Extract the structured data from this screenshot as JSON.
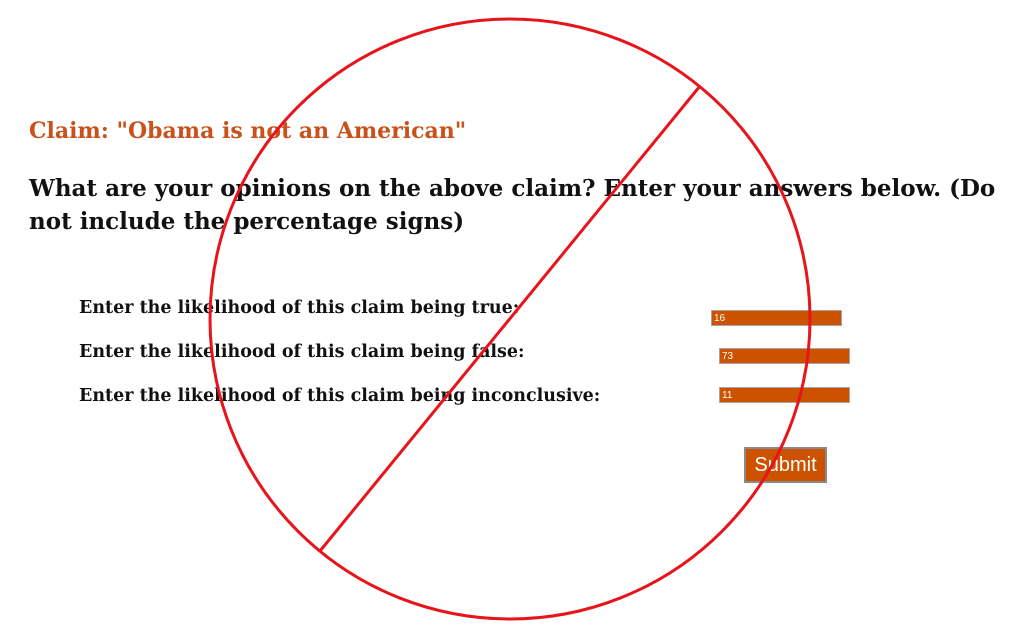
{
  "claim": "Claim: \"Obama is not an American\"",
  "question": "What are your opinions on the above claim? Enter your answers below. (Do not include the percentage signs)",
  "fields": [
    {
      "label": "Enter the likelihood of this claim being true:",
      "value": "16"
    },
    {
      "label": "Enter the likelihood of this claim being false:",
      "value": "73"
    },
    {
      "label": "Enter the likelihood of this claim being inconclusive:",
      "value": "11"
    }
  ],
  "submit_label": "Submit",
  "colors": {
    "accent": "#cc5200",
    "claim_text": "#c9511b",
    "overlay": "#e8141b"
  },
  "overlay_icon": "prohibited-icon"
}
